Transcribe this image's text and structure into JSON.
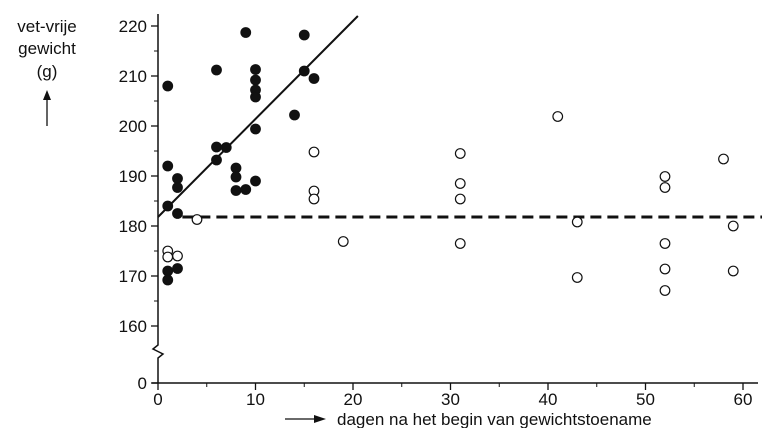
{
  "chart_data": {
    "type": "scatter",
    "ylabel_lines": [
      "vet-vrije",
      "gewicht",
      "(g)"
    ],
    "xlabel": "dagen na het begin van gewichtstoename",
    "xlim": [
      0,
      62
    ],
    "ylim": [
      155,
      222
    ],
    "y_axis_break": true,
    "x_ticks": [
      0,
      10,
      20,
      30,
      40,
      50,
      60
    ],
    "y_ticks": [
      0,
      160,
      170,
      180,
      190,
      200,
      210,
      220
    ],
    "grid": false,
    "series": [
      {
        "marker": "filled-circle",
        "color": "#111111",
        "points": [
          [
            1,
            208
          ],
          [
            1,
            192
          ],
          [
            1,
            184
          ],
          [
            1,
            171
          ],
          [
            1,
            169.2
          ],
          [
            2,
            189.5
          ],
          [
            2,
            187.7
          ],
          [
            2,
            182.5
          ],
          [
            2,
            171.5
          ],
          [
            6,
            211.2
          ],
          [
            6,
            195.8
          ],
          [
            6,
            193.2
          ],
          [
            7,
            195.7
          ],
          [
            8,
            191.6
          ],
          [
            8,
            189.8
          ],
          [
            8,
            187.1
          ],
          [
            9,
            218.7
          ],
          [
            9,
            187.3
          ],
          [
            10,
            211.3
          ],
          [
            10,
            209.2
          ],
          [
            10,
            207.2
          ],
          [
            10,
            205.8
          ],
          [
            10,
            199.4
          ],
          [
            10,
            189
          ],
          [
            14,
            202.2
          ],
          [
            15,
            218.2
          ],
          [
            15,
            211
          ],
          [
            16,
            209.5
          ]
        ]
      },
      {
        "marker": "open-circle",
        "color": "#111111",
        "points": [
          [
            1,
            175
          ],
          [
            1,
            173.8
          ],
          [
            2,
            174
          ],
          [
            4,
            181.3
          ],
          [
            16,
            194.8
          ],
          [
            16,
            187
          ],
          [
            16,
            185.4
          ],
          [
            19,
            176.9
          ],
          [
            31,
            194.5
          ],
          [
            31,
            188.5
          ],
          [
            31,
            185.4
          ],
          [
            31,
            176.5
          ],
          [
            41,
            201.9
          ],
          [
            43,
            180.8
          ],
          [
            43,
            169.7
          ],
          [
            52,
            189.9
          ],
          [
            52,
            187.7
          ],
          [
            52,
            176.5
          ],
          [
            52,
            171.4
          ],
          [
            52,
            167.1
          ],
          [
            58,
            193.4
          ],
          [
            59,
            180
          ],
          [
            59,
            171
          ]
        ]
      }
    ],
    "lines": [
      {
        "style": "solid",
        "points": [
          [
            0,
            181.8
          ],
          [
            20.5,
            222
          ]
        ]
      },
      {
        "style": "dashed",
        "points": [
          [
            2.5,
            181.8
          ],
          [
            62,
            181.8
          ]
        ]
      }
    ]
  }
}
